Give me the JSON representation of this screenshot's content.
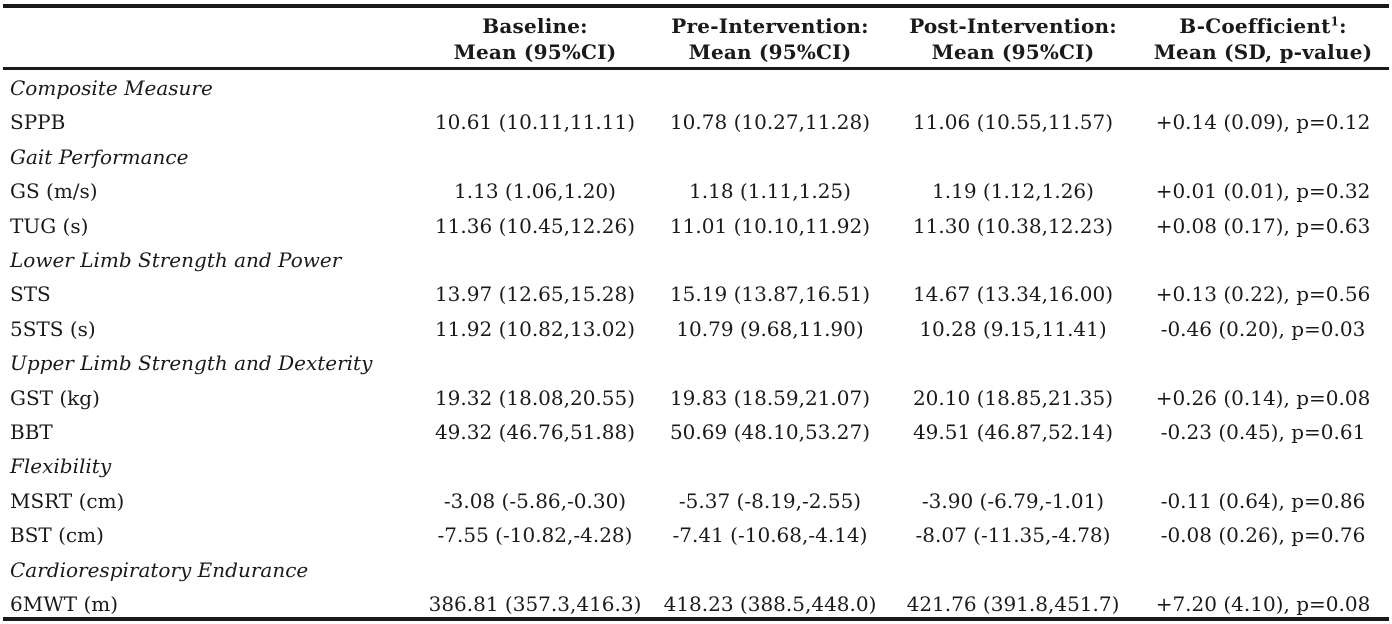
{
  "headers": [
    {
      "line1": "Baseline:",
      "line2": "Mean (95%CI)"
    },
    {
      "line1": "Pre-Intervention:",
      "line2": "Mean (95%CI)"
    },
    {
      "line1": "Post-Intervention:",
      "line2": "Mean (95%CI)"
    },
    {
      "line1": "B-Coefficient",
      "sup": "1",
      "line1_end": ":",
      "line2": "Mean (SD, p-value)"
    }
  ],
  "rows": [
    {
      "type": "section",
      "label": "Composite Measure"
    },
    {
      "type": "data",
      "label": "SPPB",
      "baseline": "10.61 (10.11,11.11)",
      "pre": "10.78 (10.27,11.28)",
      "post": "11.06 (10.55,11.57)",
      "coef": "+0.14 (0.09), p=0.12"
    },
    {
      "type": "section",
      "label": "Gait Performance"
    },
    {
      "type": "data",
      "label": "GS (m/s)",
      "baseline": "1.13 (1.06,1.20)",
      "pre": "1.18 (1.11,1.25)",
      "post": "1.19 (1.12,1.26)",
      "coef": "+0.01 (0.01), p=0.32"
    },
    {
      "type": "data",
      "label": "TUG (s)",
      "baseline": "11.36 (10.45,12.26)",
      "pre": "11.01 (10.10,11.92)",
      "post": "11.30 (10.38,12.23)",
      "coef": "+0.08 (0.17), p=0.63"
    },
    {
      "type": "section",
      "label": "Lower Limb Strength and Power"
    },
    {
      "type": "data",
      "label": "STS",
      "baseline": "13.97 (12.65,15.28)",
      "pre": "15.19 (13.87,16.51)",
      "post": "14.67 (13.34,16.00)",
      "coef": "+0.13 (0.22), p=0.56"
    },
    {
      "type": "data",
      "label": "5STS (s)",
      "baseline": "11.92 (10.82,13.02)",
      "pre": "10.79 (9.68,11.90)",
      "post": "10.28 (9.15,11.41)",
      "coef": "-0.46 (0.20), p=0.03"
    },
    {
      "type": "section",
      "label": "Upper Limb Strength and Dexterity"
    },
    {
      "type": "data",
      "label": "GST (kg)",
      "baseline": "19.32 (18.08,20.55)",
      "pre": "19.83 (18.59,21.07)",
      "post": "20.10 (18.85,21.35)",
      "coef": "+0.26 (0.14), p=0.08"
    },
    {
      "type": "data",
      "label": "BBT",
      "baseline": "49.32 (46.76,51.88)",
      "pre": "50.69 (48.10,53.27)",
      "post": "49.51 (46.87,52.14)",
      "coef": "-0.23 (0.45), p=0.61"
    },
    {
      "type": "section",
      "label": "Flexibility"
    },
    {
      "type": "data",
      "label": "MSRT (cm)",
      "baseline": "-3.08 (-5.86,-0.30)",
      "pre": "-5.37 (-8.19,-2.55)",
      "post": "-3.90 (-6.79,-1.01)",
      "coef": "-0.11 (0.64), p=0.86"
    },
    {
      "type": "data",
      "label": "BST (cm)",
      "baseline": "-7.55 (-10.82,-4.28)",
      "pre": "-7.41 (-10.68,-4.14)",
      "post": "-8.07 (-11.35,-4.78)",
      "coef": "-0.08 (0.26), p=0.76"
    },
    {
      "type": "section",
      "label": "Cardiorespiratory Endurance"
    },
    {
      "type": "data",
      "label": "6MWT (m)",
      "baseline": "386.81 (357.3,416.3)",
      "pre": "418.23 (388.5,448.0)",
      "post": "421.76 (391.8,451.7)",
      "coef": "+7.20 (4.10), p=0.08"
    }
  ]
}
